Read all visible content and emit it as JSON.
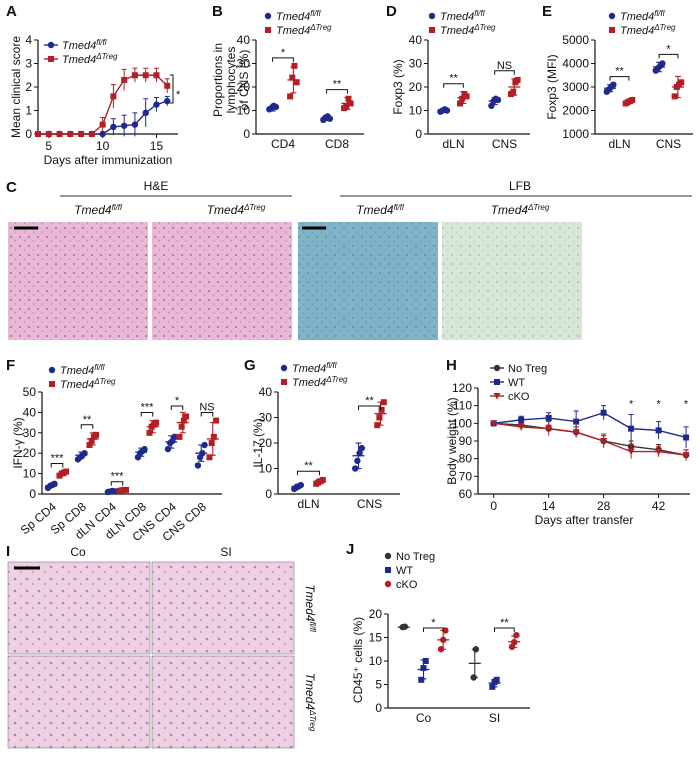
{
  "colors": {
    "ctrl": "#1f2a8c",
    "cko": "#b21f24",
    "gray": "#333333",
    "he_bg": "#e7b9d6",
    "he_dark": "#9a3b86",
    "lfb_bg": "#7fb3c7",
    "lfb_pale": "#d8e6d8",
    "si_bg": "#efd0e3",
    "si_villi": "#6b5aa8"
  },
  "legend": {
    "fl": "Tmed4",
    "fl_sup": "fl/fl",
    "treg": "Tmed4",
    "treg_sup": "ΔTreg",
    "notreg": "No Treg",
    "wt": "WT",
    "cko": "cKO"
  },
  "panelC": {
    "label": "C",
    "he": "H&E",
    "lfb": "LFB",
    "g1": "Tmed4",
    "g1s": "fl/fl",
    "g2": "Tmed4",
    "g2s": "ΔTreg"
  },
  "panelI": {
    "label": "I",
    "co": "Co",
    "si": "SI",
    "r1": "Tmed4",
    "r1s": "fl/fl",
    "r2": "Tmed4",
    "r2s": "ΔTreg"
  },
  "chart_data": [
    {
      "id": "A",
      "label": "A",
      "type": "line",
      "xlabel": "Days after immunization",
      "ylabel": "Mean clinical score",
      "xlim": [
        4,
        17
      ],
      "ylim": [
        0,
        4
      ],
      "xticks": [
        5,
        10,
        15
      ],
      "yticks": [
        0,
        1,
        2,
        3,
        4
      ],
      "series": [
        {
          "name": "Tmed4 fl/fl",
          "x": [
            4,
            5,
            6,
            7,
            8,
            9,
            10,
            11,
            12,
            13,
            14,
            15,
            16
          ],
          "y": [
            0,
            0,
            0,
            0,
            0,
            0,
            0,
            0.3,
            0.35,
            0.4,
            0.9,
            1.25,
            1.4
          ],
          "err": [
            0,
            0,
            0,
            0,
            0,
            0,
            0,
            0.35,
            0.45,
            0.5,
            0.6,
            0.3,
            0.2
          ]
        },
        {
          "name": "Tmed4 ΔTreg",
          "x": [
            4,
            5,
            6,
            7,
            8,
            9,
            10,
            11,
            12,
            13,
            14,
            15,
            16
          ],
          "y": [
            0,
            0,
            0,
            0,
            0,
            0,
            0.4,
            1.6,
            2.3,
            2.5,
            2.5,
            2.5,
            2.05
          ],
          "err": [
            0,
            0,
            0,
            0,
            0,
            0,
            0.3,
            0.5,
            0.45,
            0.3,
            0.3,
            0.3,
            0.3
          ]
        }
      ],
      "stats": [
        "*"
      ]
    },
    {
      "id": "B",
      "label": "B",
      "type": "scatter",
      "ylabel": "Proportions in lymphocytes of CNS (%)",
      "categories": [
        "CD4",
        "CD8"
      ],
      "ylim": [
        0,
        40
      ],
      "yticks": [
        0,
        10,
        20,
        30,
        40
      ],
      "series": [
        {
          "name": "Tmed4 fl/fl",
          "values": [
            [
              10.5,
              11,
              12,
              11.5
            ],
            [
              6,
              7,
              7.5,
              6.5
            ]
          ],
          "mean": [
            11,
            6.8
          ],
          "sd": [
            1.2,
            1.1
          ]
        },
        {
          "name": "Tmed4 ΔTreg",
          "values": [
            [
              16,
              24,
              29,
              22
            ],
            [
              11,
              12,
              15,
              13
            ]
          ],
          "mean": [
            23,
            13
          ],
          "sd": [
            5.5,
            2.5
          ]
        }
      ],
      "stats": [
        "*",
        "**"
      ]
    },
    {
      "id": "D",
      "label": "D",
      "type": "scatter",
      "ylabel": "Foxp3 (%)",
      "categories": [
        "dLN",
        "CNS"
      ],
      "ylim": [
        0,
        40
      ],
      "yticks": [
        0,
        10,
        20,
        30,
        40
      ],
      "series": [
        {
          "name": "Tmed4 fl/fl",
          "values": [
            [
              9.5,
              10,
              10.5,
              10
            ],
            [
              12,
              14,
              15,
              14.5
            ]
          ],
          "mean": [
            10,
            14
          ],
          "sd": [
            0.5,
            1.5
          ]
        },
        {
          "name": "Tmed4 ΔTreg",
          "values": [
            [
              13,
              15,
              17,
              16
            ],
            [
              17,
              18,
              22,
              23
            ]
          ],
          "mean": [
            15.5,
            20
          ],
          "sd": [
            2.5,
            3.5
          ]
        }
      ],
      "stats": [
        "**",
        "NS"
      ]
    },
    {
      "id": "E",
      "label": "E",
      "type": "scatter",
      "ylabel": "Foxp3 (MFI)",
      "categories": [
        "dLN",
        "CNS"
      ],
      "ylim": [
        1000,
        5000
      ],
      "yticks": [
        1000,
        2000,
        3000,
        4000,
        5000
      ],
      "series": [
        {
          "name": "Tmed4 fl/fl",
          "values": [
            [
              2800,
              2900,
              3000,
              3100
            ],
            [
              3700,
              3800,
              3900,
              4000
            ]
          ],
          "mean": [
            2950,
            3850
          ],
          "sd": [
            150,
            200
          ]
        },
        {
          "name": "Tmed4 ΔTreg",
          "values": [
            [
              2300,
              2350,
              2400,
              2450
            ],
            [
              2600,
              3000,
              3100,
              3200
            ]
          ],
          "mean": [
            2380,
            3000
          ],
          "sd": [
            80,
            450
          ]
        }
      ],
      "stats": [
        "**",
        "*"
      ]
    },
    {
      "id": "F",
      "label": "F",
      "type": "scatter",
      "ylabel": "IFN-γ (%)",
      "categories": [
        "Sp CD4",
        "Sp CD8",
        "dLN CD4",
        "dLN CD8",
        "CNS CD4",
        "CNS CD8"
      ],
      "ylim": [
        0,
        50
      ],
      "yticks": [
        0,
        10,
        20,
        30,
        40,
        50
      ],
      "series": [
        {
          "name": "Tmed4 fl/fl",
          "values": [
            [
              3,
              4,
              4.5,
              5
            ],
            [
              17,
              18,
              19,
              20
            ],
            [
              1,
              1.2,
              1.5,
              1.3
            ],
            [
              18,
              20,
              21,
              22
            ],
            [
              22,
              25,
              26,
              28
            ],
            [
              14,
              18,
              20,
              24
            ]
          ],
          "mean": [
            4,
            19,
            1.3,
            20.5,
            25.5,
            20
          ],
          "sd": [
            0.8,
            1.5,
            0.3,
            2,
            3,
            4
          ]
        },
        {
          "name": "Tmed4 ΔTreg",
          "values": [
            [
              9,
              10,
              10.5,
              11
            ],
            [
              24,
              26,
              28,
              29
            ],
            [
              1.5,
              1.8,
              2,
              2
            ],
            [
              30,
              33,
              34,
              35
            ],
            [
              28,
              33,
              36,
              38
            ],
            [
              18,
              25,
              28,
              36
            ]
          ],
          "mean": [
            10,
            27,
            1.8,
            33,
            35,
            27
          ],
          "sd": [
            1,
            3,
            0.3,
            3,
            5,
            8
          ]
        }
      ],
      "stats": [
        "***",
        "**",
        "***",
        "***",
        "*",
        "NS"
      ]
    },
    {
      "id": "G",
      "label": "G",
      "type": "scatter",
      "ylabel": "IL-17 (%)",
      "categories": [
        "dLN",
        "CNS"
      ],
      "ylim": [
        0,
        40
      ],
      "yticks": [
        0,
        10,
        20,
        30,
        40
      ],
      "series": [
        {
          "name": "Tmed4 fl/fl",
          "values": [
            [
              2,
              2.5,
              3,
              3.5
            ],
            [
              10,
              13,
              16,
              18
            ]
          ],
          "mean": [
            3,
            15
          ],
          "sd": [
            0.8,
            5
          ]
        },
        {
          "name": "Tmed4 ΔTreg",
          "values": [
            [
              4,
              4.5,
              5,
              5.5
            ],
            [
              27,
              30,
              33,
              36
            ]
          ],
          "mean": [
            5,
            31.5
          ],
          "sd": [
            0.8,
            4.5
          ]
        }
      ],
      "stats": [
        "**",
        "**"
      ]
    },
    {
      "id": "H",
      "label": "H",
      "type": "line",
      "xlabel": "Days after transfer",
      "ylabel": "Body weight (%)",
      "xlim": [
        -4,
        50
      ],
      "ylim": [
        60,
        120
      ],
      "xticks": [
        0,
        14,
        28,
        42
      ],
      "yticks": [
        60,
        70,
        80,
        90,
        100,
        110,
        120
      ],
      "series": [
        {
          "name": "No Treg",
          "x": [
            0,
            7,
            14,
            21,
            28,
            35,
            42,
            49
          ],
          "y": [
            100,
            99,
            97,
            95,
            90,
            87,
            85,
            82
          ],
          "err": [
            1,
            2,
            2,
            3,
            3,
            3,
            3,
            3
          ]
        },
        {
          "name": "WT",
          "x": [
            0,
            7,
            14,
            21,
            28,
            35,
            42,
            49
          ],
          "y": [
            100,
            102,
            103,
            101,
            106,
            97,
            96,
            92
          ],
          "err": [
            1,
            2,
            3,
            6,
            4,
            8,
            5,
            6
          ]
        },
        {
          "name": "cKO",
          "x": [
            0,
            7,
            14,
            21,
            28,
            35,
            42,
            49
          ],
          "y": [
            100,
            98,
            97,
            95,
            90,
            84,
            84,
            82
          ],
          "err": [
            1,
            2,
            4,
            3,
            4,
            4,
            3,
            3
          ]
        }
      ],
      "stats": [
        "*",
        "*",
        "*"
      ]
    },
    {
      "id": "J",
      "label": "J",
      "type": "scatter",
      "ylabel": "CD45⁺ cells (%)",
      "categories": [
        "Co",
        "SI"
      ],
      "ylim": [
        0,
        20
      ],
      "yticks": [
        0,
        5,
        10,
        15,
        20
      ],
      "series": [
        {
          "name": "No Treg",
          "values": [
            [
              17.2,
              17.3
            ],
            [
              6.5,
              12.5
            ]
          ],
          "mean": [
            17.2,
            9.5
          ],
          "sd": [
            0,
            3
          ]
        },
        {
          "name": "WT",
          "values": [
            [
              6,
              8.5,
              10
            ],
            [
              4.5,
              5.5,
              6
            ]
          ],
          "mean": [
            8.2,
            5.3
          ],
          "sd": [
            2,
            0.8
          ]
        },
        {
          "name": "cKO",
          "values": [
            [
              12.5,
              14.5,
              16.5
            ],
            [
              13,
              14,
              15.5
            ]
          ],
          "mean": [
            14.5,
            14.1
          ],
          "sd": [
            2,
            1.2
          ]
        }
      ],
      "stats": [
        "*",
        "**"
      ]
    }
  ]
}
